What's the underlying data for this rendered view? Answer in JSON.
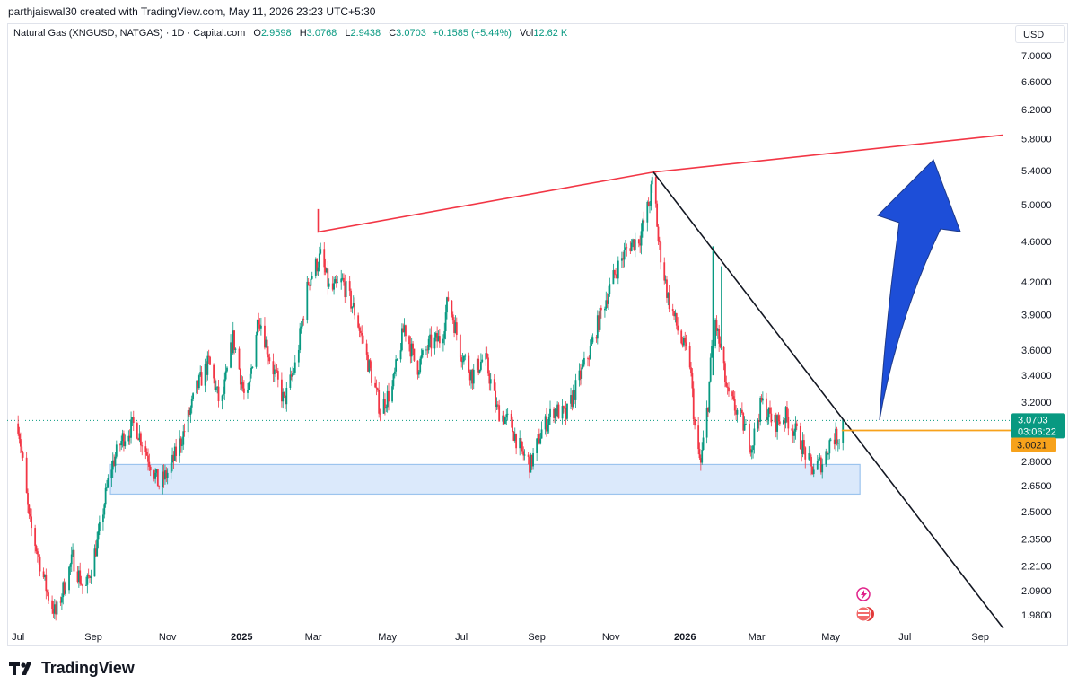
{
  "header": {
    "credit": "parthjaiswal30 created with TradingView.com, May 11, 2026 23:23 UTC+5:30"
  },
  "legend": {
    "symbol": "Natural Gas (XNGUSD, NATGAS) · 1D · Capital.com",
    "open_label": "O",
    "open": "2.9598",
    "high_label": "H",
    "high": "3.0768",
    "low_label": "L",
    "low": "2.9438",
    "close_label": "C",
    "close": "3.0703",
    "change": "+0.1585 (+5.44%)",
    "vol_label": "Vol",
    "vol": "12.62 K"
  },
  "currency": "USD",
  "brand": {
    "name": "TradingView"
  },
  "colors": {
    "up": "#089981",
    "down": "#f23645",
    "resistance_line": "#f23645",
    "trend_line": "#131722",
    "zone_fill": "#dbe9fb",
    "zone_border": "#9cc4ee",
    "arrow": "#1d4ed8",
    "last_price_badge": "#089981",
    "marked_price_badge": "#f7a21b"
  },
  "chart_data": {
    "type": "candlestick",
    "y_scale": "log",
    "ylim": [
      1.92,
      7.2
    ],
    "y_ticks": [
      "7.0000",
      "6.6000",
      "6.2000",
      "5.8000",
      "5.4000",
      "5.0000",
      "4.6000",
      "4.2000",
      "3.9000",
      "3.6000",
      "3.4000",
      "3.2000",
      "2.8000",
      "2.6500",
      "2.5000",
      "2.3500",
      "2.2100",
      "2.0900",
      "1.9800"
    ],
    "x_ticks": [
      "Jul",
      "Sep",
      "Nov",
      "2025",
      "Mar",
      "May",
      "Jul",
      "Sep",
      "Nov",
      "2026",
      "Mar",
      "May",
      "Jul",
      "Sep"
    ],
    "series": [
      {
        "name": "Natural Gas (XNGUSD, NATGAS)",
        "path_points": [
          [
            "2024-07-01",
            3.05
          ],
          [
            "2024-07-10",
            2.45
          ],
          [
            "2024-07-25",
            2.08
          ],
          [
            "2024-08-01",
            1.98
          ],
          [
            "2024-08-15",
            2.25
          ],
          [
            "2024-08-25",
            2.08
          ],
          [
            "2024-09-05",
            2.35
          ],
          [
            "2024-09-15",
            2.75
          ],
          [
            "2024-09-25",
            2.95
          ],
          [
            "2024-10-05",
            3.05
          ],
          [
            "2024-10-15",
            2.85
          ],
          [
            "2024-10-25",
            2.65
          ],
          [
            "2024-11-03",
            2.75
          ],
          [
            "2024-11-15",
            3.0
          ],
          [
            "2024-11-25",
            3.3
          ],
          [
            "2024-12-05",
            3.5
          ],
          [
            "2024-12-15",
            3.15
          ],
          [
            "2024-12-25",
            3.7
          ],
          [
            "2025-01-05",
            3.15
          ],
          [
            "2025-01-15",
            3.9
          ],
          [
            "2025-01-25",
            3.5
          ],
          [
            "2025-02-05",
            3.2
          ],
          [
            "2025-02-15",
            3.5
          ],
          [
            "2025-02-25",
            4.2
          ],
          [
            "2025-03-07",
            4.45
          ],
          [
            "2025-03-15",
            4.1
          ],
          [
            "2025-03-25",
            4.2
          ],
          [
            "2025-04-05",
            3.9
          ],
          [
            "2025-04-15",
            3.5
          ],
          [
            "2025-04-25",
            3.15
          ],
          [
            "2025-05-05",
            3.3
          ],
          [
            "2025-05-15",
            3.8
          ],
          [
            "2025-05-25",
            3.45
          ],
          [
            "2025-06-05",
            3.65
          ],
          [
            "2025-06-15",
            3.7
          ],
          [
            "2025-06-20",
            4.05
          ],
          [
            "2025-06-30",
            3.6
          ],
          [
            "2025-07-10",
            3.4
          ],
          [
            "2025-07-20",
            3.55
          ],
          [
            "2025-07-30",
            3.15
          ],
          [
            "2025-08-10",
            3.05
          ],
          [
            "2025-08-20",
            2.85
          ],
          [
            "2025-08-27",
            2.78
          ],
          [
            "2025-09-05",
            3.0
          ],
          [
            "2025-09-15",
            3.15
          ],
          [
            "2025-09-25",
            3.1
          ],
          [
            "2025-10-05",
            3.35
          ],
          [
            "2025-10-15",
            3.6
          ],
          [
            "2025-10-25",
            3.95
          ],
          [
            "2025-11-05",
            4.3
          ],
          [
            "2025-11-15",
            4.55
          ],
          [
            "2025-11-25",
            4.65
          ],
          [
            "2025-12-03",
            5.05
          ],
          [
            "2025-12-06",
            5.35
          ],
          [
            "2025-12-10",
            4.6
          ],
          [
            "2025-12-18",
            4.05
          ],
          [
            "2025-12-28",
            3.7
          ],
          [
            "2026-01-05",
            3.5
          ],
          [
            "2026-01-10",
            2.9
          ],
          [
            "2026-01-14",
            2.78
          ],
          [
            "2026-01-20",
            3.2
          ],
          [
            "2026-01-25",
            3.9
          ],
          [
            "2026-01-30",
            3.6
          ],
          [
            "2026-02-05",
            3.25
          ],
          [
            "2026-02-15",
            3.1
          ],
          [
            "2026-02-25",
            2.9
          ],
          [
            "2026-03-05",
            3.2
          ],
          [
            "2026-03-15",
            3.05
          ],
          [
            "2026-03-25",
            3.1
          ],
          [
            "2026-04-05",
            2.95
          ],
          [
            "2026-04-15",
            2.75
          ],
          [
            "2026-04-25",
            2.8
          ],
          [
            "2026-05-01",
            2.95
          ],
          [
            "2026-05-08",
            2.96
          ],
          [
            "2026-05-11",
            3.0703
          ]
        ],
        "spikes": [
          {
            "date": "2026-01-24",
            "high": 4.55,
            "low": 3.4
          },
          {
            "date": "2026-01-31",
            "high": 4.35,
            "low": 3.6
          }
        ]
      }
    ],
    "drawings": {
      "resistance_line": [
        [
          "2025-03-05",
          4.95
        ],
        [
          "2025-03-05",
          4.7
        ],
        [
          "2025-12-06",
          5.38
        ],
        [
          "2026-09-20",
          5.85
        ]
      ],
      "trend_line": [
        [
          "2025-12-06",
          5.38
        ],
        [
          "2026-09-20",
          1.92
        ]
      ],
      "demand_zone": {
        "x_start": "2024-09-15",
        "x_end": "2026-05-25",
        "y_low": 2.6,
        "y_high": 2.78
      },
      "marked_price_line": {
        "x_start": "2026-05-10",
        "value": 3.0021
      },
      "last_price_line": 3.0703
    },
    "price_badges": [
      {
        "price": "3.0703",
        "countdown": "03:06:22"
      },
      {
        "price": "3.0021"
      }
    ]
  }
}
